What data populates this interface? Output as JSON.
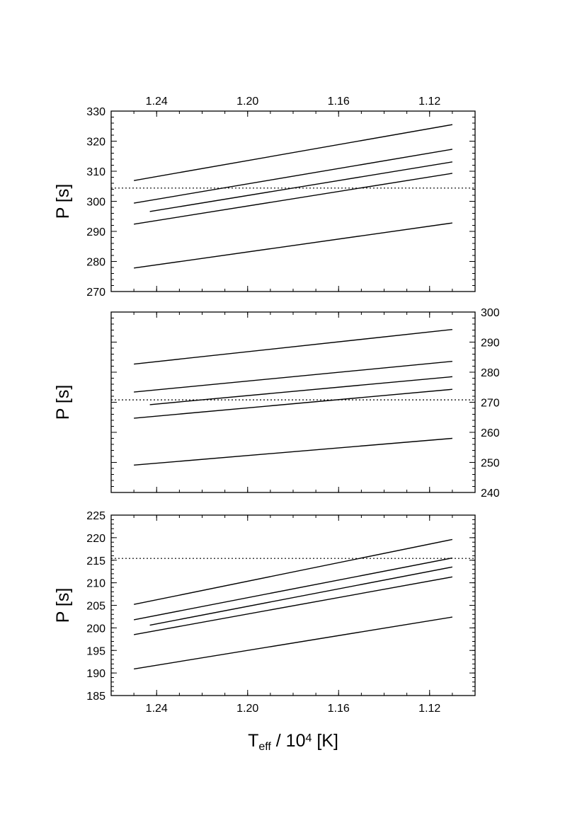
{
  "chart_data": [
    {
      "type": "line",
      "ylabel": "P [s]",
      "yaxis": "left",
      "xtick_side": "top",
      "xlim": [
        1.26,
        1.1
      ],
      "xticks": [
        1.24,
        {
          "value": 1.2,
          "label": "1.20"
        },
        1.16,
        1.12
      ],
      "xminor": 0.01,
      "ylim": [
        270,
        330
      ],
      "yticks": [
        270,
        280,
        290,
        300,
        310,
        320,
        330
      ],
      "yminor": 2,
      "hline": 304.4,
      "color": "#000000",
      "series": [
        {
          "x": [
            1.25,
            1.11
          ],
          "values": [
            306.9,
            325.5
          ]
        },
        {
          "x": [
            1.25,
            1.11
          ],
          "values": [
            299.4,
            317.3
          ]
        },
        {
          "x": [
            1.243,
            1.11
          ],
          "values": [
            296.6,
            313.1
          ]
        },
        {
          "x": [
            1.25,
            1.11
          ],
          "values": [
            292.4,
            309.3
          ]
        },
        {
          "x": [
            1.25,
            1.11
          ],
          "values": [
            277.8,
            292.8
          ]
        }
      ]
    },
    {
      "type": "line",
      "ylabel": "P [s]",
      "yaxis": "right",
      "xlim": [
        1.26,
        1.1
      ],
      "xticks": [
        1.24,
        1.2,
        1.16,
        1.12
      ],
      "xminor": 0.01,
      "ylim": [
        240,
        300
      ],
      "yticks": [
        240,
        250,
        260,
        270,
        280,
        290,
        300
      ],
      "yminor": 2,
      "hline": 270.8,
      "color": "#000000",
      "series": [
        {
          "x": [
            1.25,
            1.11
          ],
          "values": [
            282.7,
            294.2
          ]
        },
        {
          "x": [
            1.25,
            1.11
          ],
          "values": [
            273.4,
            283.6
          ]
        },
        {
          "x": [
            1.243,
            1.11
          ],
          "values": [
            269.2,
            278.5
          ]
        },
        {
          "x": [
            1.25,
            1.11
          ],
          "values": [
            264.7,
            274.3
          ]
        },
        {
          "x": [
            1.25,
            1.11
          ],
          "values": [
            249.1,
            258.0
          ]
        }
      ]
    },
    {
      "type": "line",
      "ylabel": "P [s]",
      "yaxis": "left",
      "xtick_side": "bottom",
      "xlabel": [
        "T",
        "eff",
        " / 10",
        "4",
        " [K]"
      ],
      "xlim": [
        1.26,
        1.1
      ],
      "xticks": [
        1.24,
        {
          "value": 1.2,
          "label": "1.20"
        },
        1.16,
        1.12
      ],
      "xminor": 0.01,
      "ylim": [
        185,
        225
      ],
      "yticks": [
        185,
        190,
        195,
        200,
        205,
        210,
        215,
        220,
        225
      ],
      "yminor": 1,
      "hline": 215.4,
      "color": "#000000",
      "series": [
        {
          "x": [
            1.25,
            1.11
          ],
          "values": [
            205.2,
            219.6
          ]
        },
        {
          "x": [
            1.25,
            1.11
          ],
          "values": [
            201.8,
            215.5
          ]
        },
        {
          "x": [
            1.243,
            1.11
          ],
          "values": [
            200.6,
            213.5
          ]
        },
        {
          "x": [
            1.25,
            1.11
          ],
          "values": [
            198.5,
            211.3
          ]
        },
        {
          "x": [
            1.25,
            1.11
          ],
          "values": [
            190.9,
            202.4
          ]
        }
      ]
    }
  ]
}
